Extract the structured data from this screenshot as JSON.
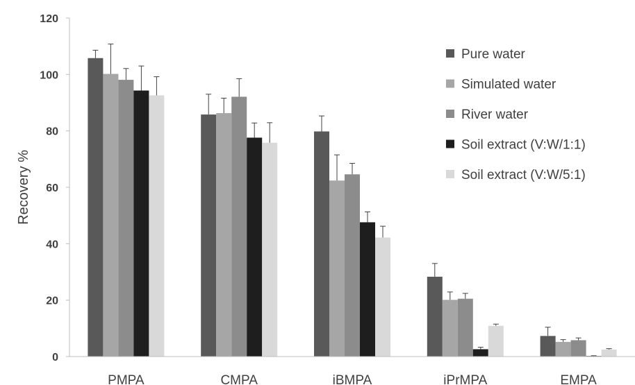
{
  "chart_data": {
    "type": "bar",
    "ylabel": "Recovery %",
    "ylim": [
      0,
      120
    ],
    "yticks": [
      "0",
      "20",
      "40",
      "60",
      "80",
      "100",
      "120"
    ],
    "categories": [
      "PMPA",
      "CMPA",
      "iBMPA",
      "iPrMPA",
      "EMPA"
    ],
    "legend_position": "top-right",
    "grid": false,
    "series": [
      {
        "name": "Pure water",
        "color": "#595959",
        "values": [
          105.8,
          85.8,
          79.8,
          28.3,
          7.3
        ],
        "errors": [
          2.8,
          7.2,
          5.5,
          4.7,
          3.1
        ]
      },
      {
        "name": "Simulated water",
        "color": "#a6a6a6",
        "values": [
          100.2,
          86.3,
          62.4,
          20.1,
          5.2
        ],
        "errors": [
          10.6,
          5.3,
          9.1,
          2.8,
          0.8
        ]
      },
      {
        "name": "River water",
        "color": "#8c8c8c",
        "values": [
          98.1,
          92.1,
          64.6,
          20.5,
          5.8
        ],
        "errors": [
          4.0,
          6.4,
          3.9,
          1.9,
          0.8
        ]
      },
      {
        "name": "Soil extract (V:W/1:1)",
        "color": "#1e1e1e",
        "values": [
          94.3,
          77.6,
          47.6,
          2.6,
          0.2
        ],
        "errors": [
          8.7,
          5.2,
          3.7,
          0.7,
          0.1
        ]
      },
      {
        "name": "Soil extract (V:W/5:1)",
        "color": "#d9d9d9",
        "values": [
          92.6,
          75.8,
          42.2,
          10.9,
          2.5
        ],
        "errors": [
          6.6,
          7.1,
          4.0,
          0.6,
          0.3
        ]
      }
    ]
  }
}
